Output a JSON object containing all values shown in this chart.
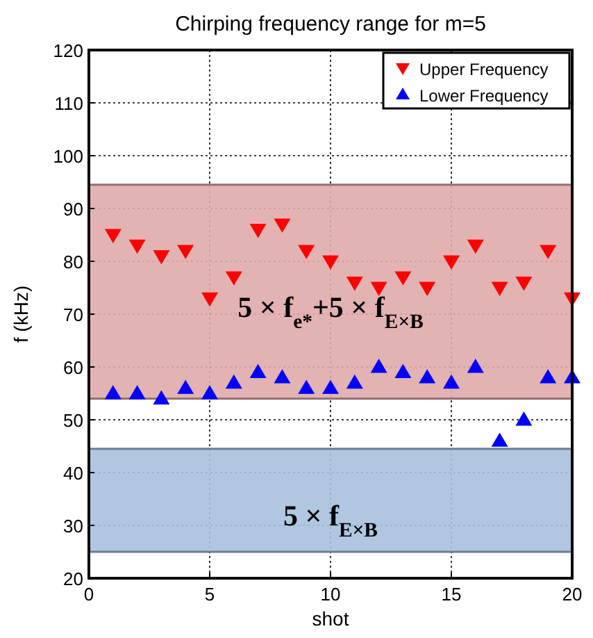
{
  "chart_data": {
    "type": "scatter",
    "title": "Chirping frequency range for m=5",
    "xlabel": "shot",
    "ylabel": "f (kHz)",
    "x": [
      1,
      2,
      3,
      4,
      5,
      6,
      7,
      8,
      9,
      10,
      11,
      12,
      13,
      14,
      15,
      16,
      17,
      18,
      19,
      20
    ],
    "series": [
      {
        "name": "Upper Frequency",
        "color": "#ff0000",
        "marker": "triangle-down",
        "values": [
          85,
          83,
          81,
          82,
          73,
          77,
          86,
          87,
          82,
          80,
          76,
          75,
          77,
          75,
          80,
          83,
          75,
          76,
          82,
          73
        ]
      },
      {
        "name": "Lower Frequency",
        "color": "#0000ff",
        "marker": "triangle",
        "values": [
          55,
          55,
          54,
          56,
          55,
          57,
          59,
          58,
          56,
          56,
          57,
          60,
          59,
          58,
          57,
          60,
          46,
          50,
          58,
          58
        ]
      }
    ],
    "bands": [
      {
        "axis": "y",
        "from": 54,
        "to": 94.5,
        "label": "5 × f$_{e*}$+5 × f$_{E×B}$",
        "color": "#e0aaaa"
      },
      {
        "axis": "y",
        "from": 25,
        "to": 44.5,
        "label": "5 × f$_{E×B}$",
        "color": "#a7c0de"
      }
    ],
    "xlim": [
      0,
      20
    ],
    "xticks": [
      0,
      5,
      10,
      15,
      20
    ],
    "ylim": [
      20,
      120
    ],
    "yticks": [
      20,
      30,
      40,
      50,
      60,
      70,
      80,
      90,
      100,
      110,
      120
    ],
    "grid": true,
    "legend": "top right"
  }
}
